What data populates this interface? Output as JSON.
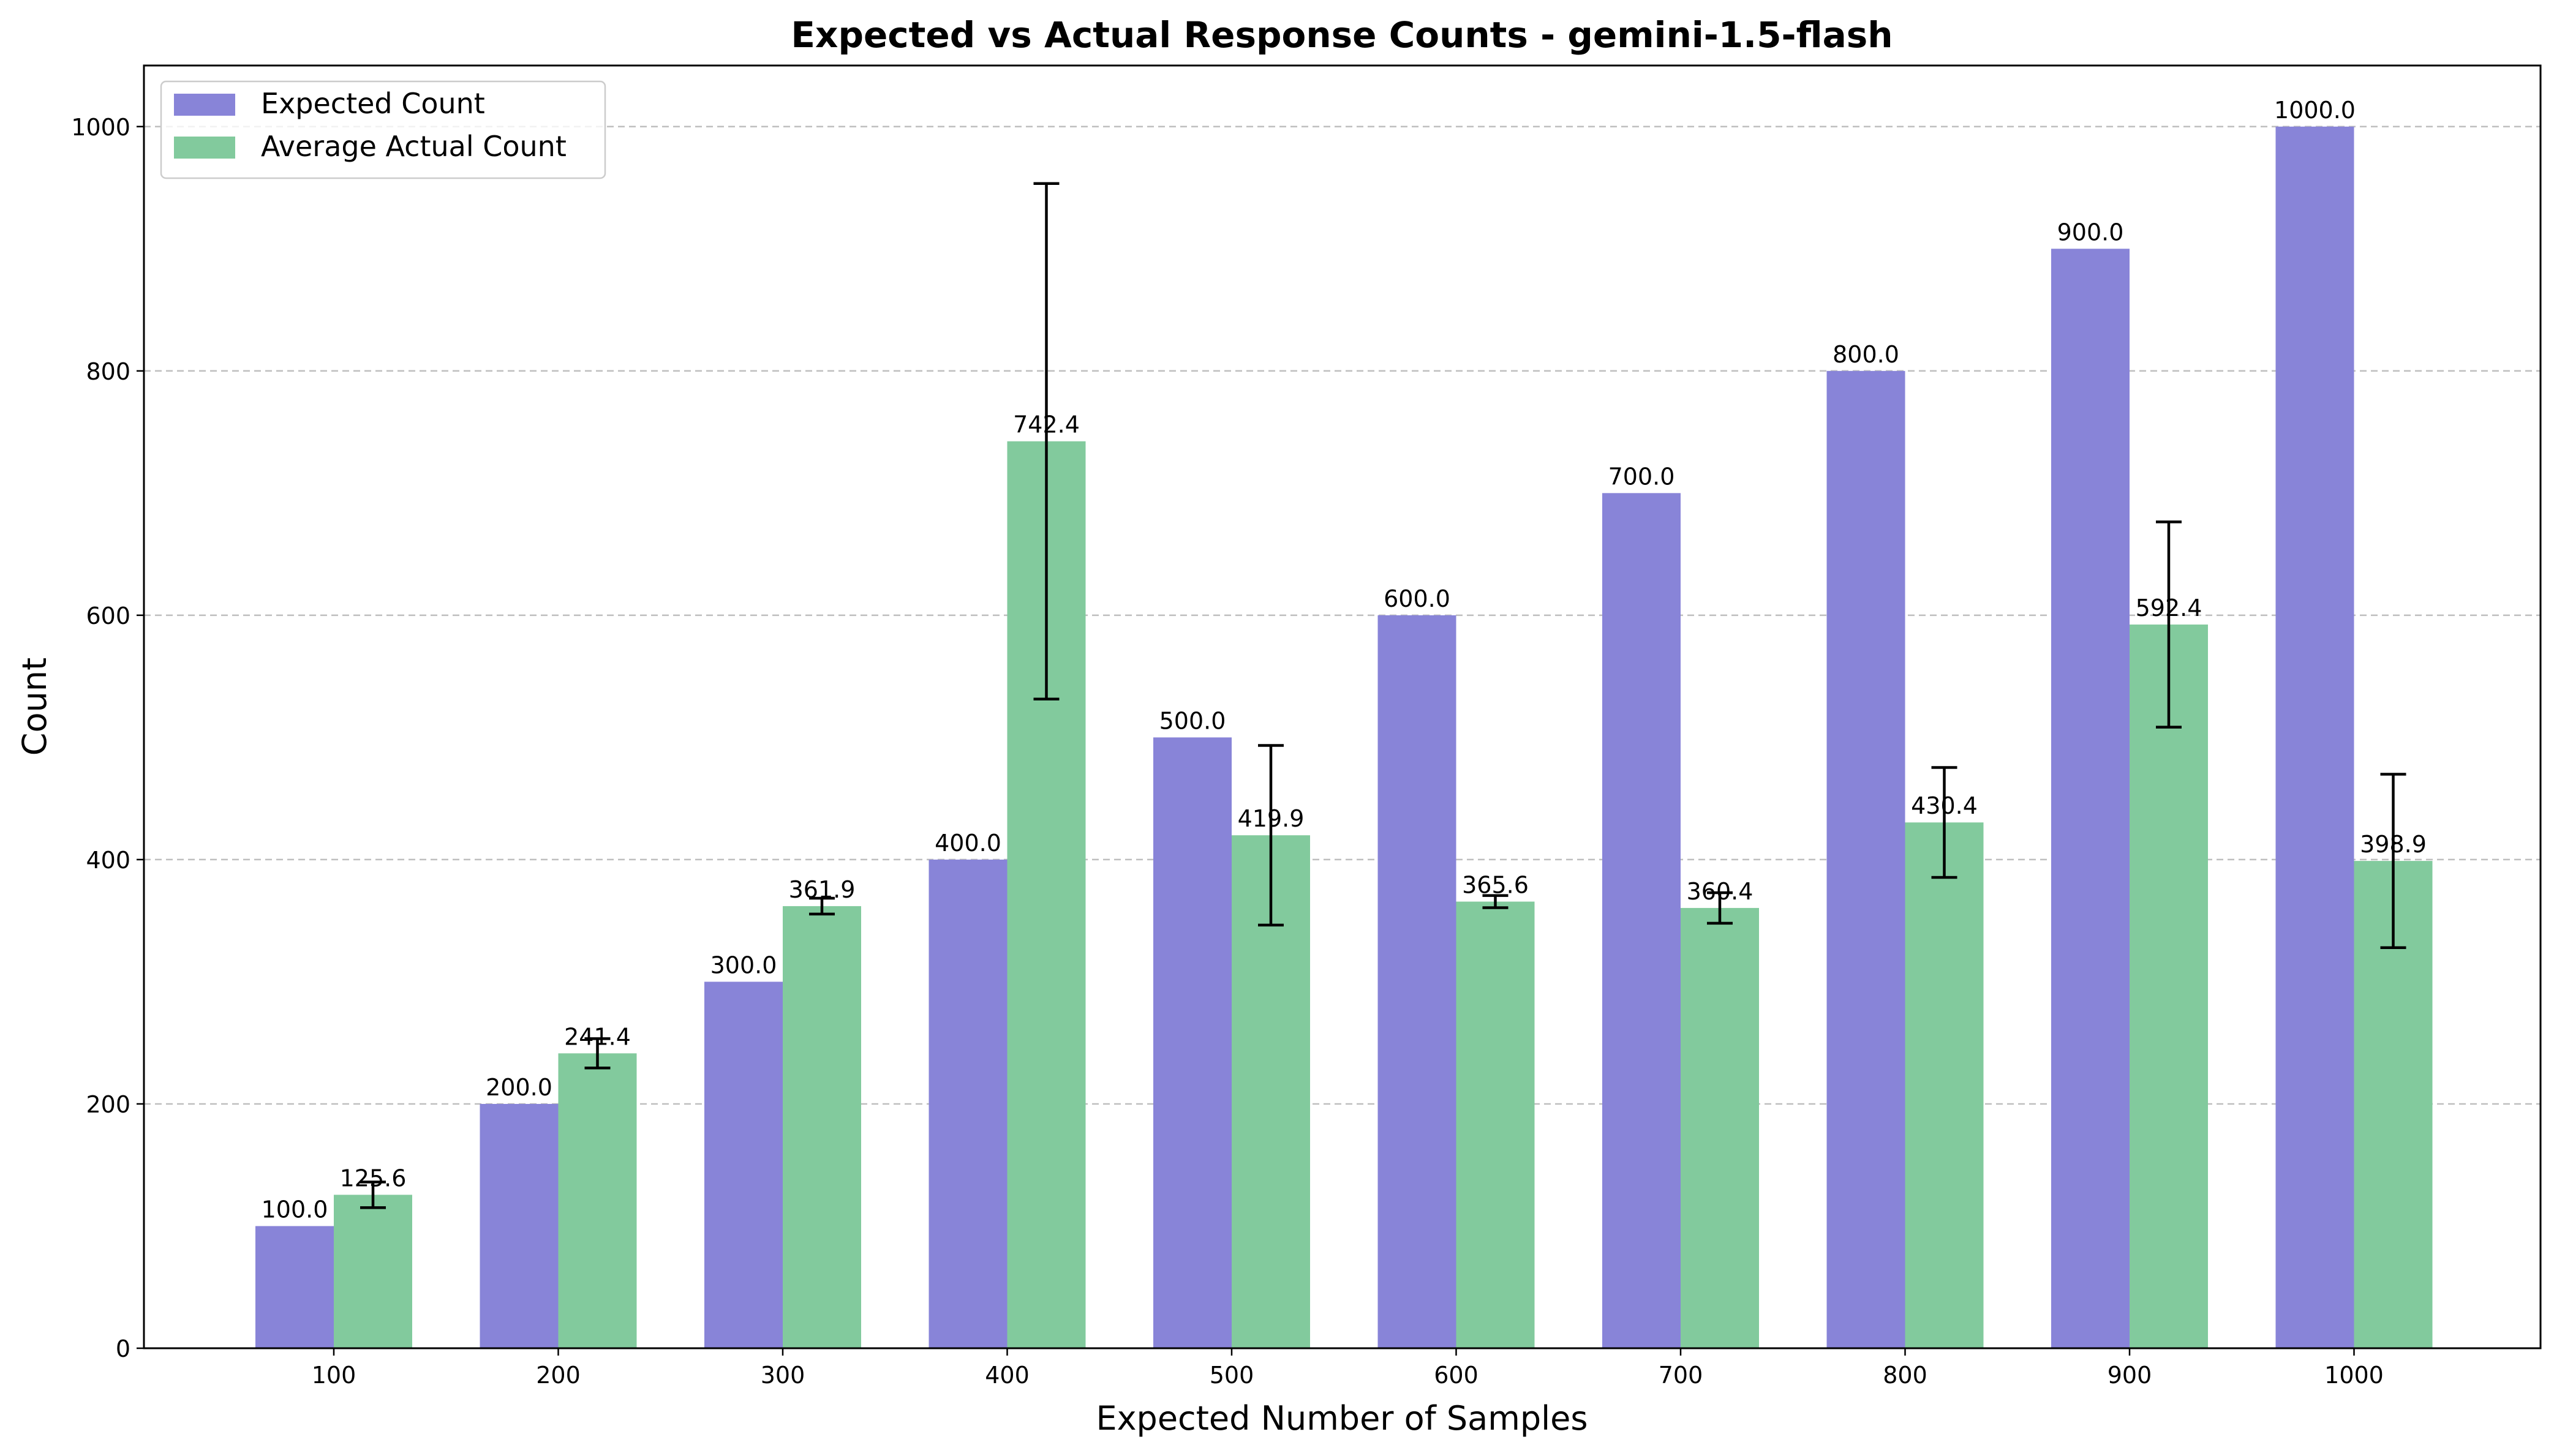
{
  "chart_data": {
    "type": "bar",
    "title": "Expected vs Actual Response Counts - gemini-1.5-flash",
    "xlabel": "Expected Number of Samples",
    "ylabel": "Count",
    "categories": [
      "100",
      "200",
      "300",
      "400",
      "500",
      "600",
      "700",
      "800",
      "900",
      "1000"
    ],
    "ylim": [
      0,
      1050
    ],
    "yticks": [
      0,
      200,
      400,
      600,
      800,
      1000
    ],
    "grid": "y-dashed",
    "legend_position": "top-left",
    "series": [
      {
        "name": "Expected Count",
        "color": "#8884d8",
        "values": [
          100.0,
          200.0,
          300.0,
          400.0,
          500.0,
          600.0,
          700.0,
          800.0,
          900.0,
          1000.0
        ],
        "labels": [
          "100.0",
          "200.0",
          "300.0",
          "400.0",
          "500.0",
          "600.0",
          "700.0",
          "800.0",
          "900.0",
          "1000.0"
        ]
      },
      {
        "name": "Average Actual Count",
        "color": "#82ca9d",
        "values": [
          125.6,
          241.4,
          361.9,
          742.4,
          419.9,
          365.6,
          360.4,
          430.4,
          592.4,
          398.9
        ],
        "labels": [
          "125.6",
          "241.4",
          "361.9",
          "742.4",
          "419.9",
          "365.6",
          "360.4",
          "430.4",
          "592.4",
          "398.9"
        ],
        "error": [
          10.5,
          12.0,
          6.5,
          211.0,
          73.5,
          5.0,
          12.5,
          45.0,
          84.0,
          71.0
        ]
      }
    ]
  }
}
